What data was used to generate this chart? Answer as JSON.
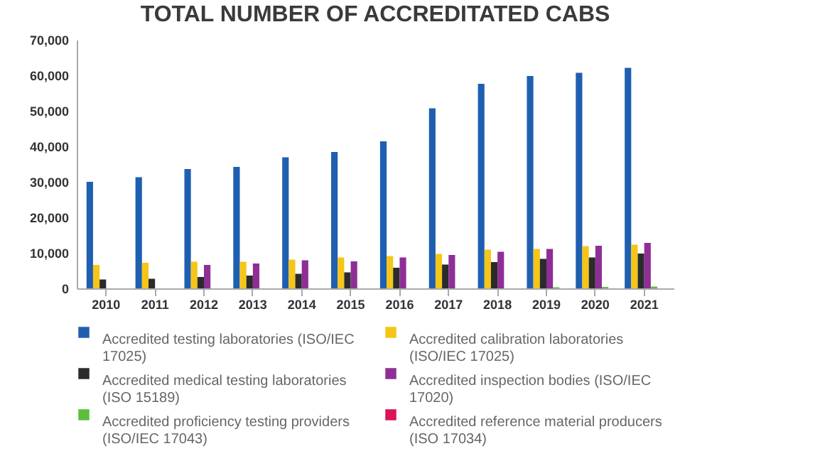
{
  "chart_data": {
    "type": "bar",
    "title": "TOTAL NUMBER OF ACCREDITATED CABS",
    "categories": [
      "2010",
      "2011",
      "2012",
      "2013",
      "2014",
      "2015",
      "2016",
      "2017",
      "2018",
      "2019",
      "2020",
      "2021"
    ],
    "series": [
      {
        "name": "Accredited testing laboratories (ISO/IEC 17025)",
        "color": "#1f5fb0",
        "values": [
          30000,
          31300,
          33600,
          34200,
          36900,
          38400,
          41400,
          50700,
          57600,
          59800,
          60700,
          62100
        ]
      },
      {
        "name": "Accredited calibration laboratories (ISO/IEC 17025)",
        "color": "#f5c518",
        "values": [
          6600,
          7200,
          7500,
          7500,
          8100,
          8700,
          9100,
          9700,
          10900,
          11100,
          11900,
          12300
        ]
      },
      {
        "name": "Accredited medical testing laboratories (ISO 15189)",
        "color": "#2b2b2b",
        "values": [
          2500,
          2700,
          3200,
          3600,
          4100,
          4500,
          5800,
          6700,
          7400,
          8300,
          8700,
          9800
        ]
      },
      {
        "name": "Accredited inspection bodies (ISO/IEC 17020)",
        "color": "#8e2f96",
        "values": [
          null,
          null,
          6600,
          7000,
          7900,
          7600,
          8700,
          9400,
          10300,
          11100,
          12000,
          12800
        ]
      },
      {
        "name": "Accredited proficiency testing providers (ISO/IEC 17043)",
        "color": "#5bbf3c",
        "values": [
          null,
          null,
          null,
          null,
          null,
          null,
          null,
          null,
          null,
          300,
          400,
          500
        ]
      },
      {
        "name": "Accredited reference material producers (ISO 17034)",
        "color": "#d9145a",
        "values": [
          null,
          null,
          null,
          null,
          null,
          null,
          null,
          null,
          null,
          null,
          null,
          null
        ]
      }
    ],
    "ylim": [
      0,
      70000
    ],
    "yticks": [
      0,
      {
        "value": 10000,
        "label": "10,000"
      },
      {
        "value": 20000,
        "label": "20,000"
      },
      {
        "value": 30000,
        "label": "30,000"
      },
      {
        "value": 40000,
        "label": "40,000"
      },
      {
        "value": 50000,
        "label": "50,000"
      },
      {
        "value": 60000,
        "label": "60,000"
      },
      {
        "value": 70000,
        "label": "70,000"
      }
    ],
    "grid": false,
    "legend": "bottom"
  }
}
